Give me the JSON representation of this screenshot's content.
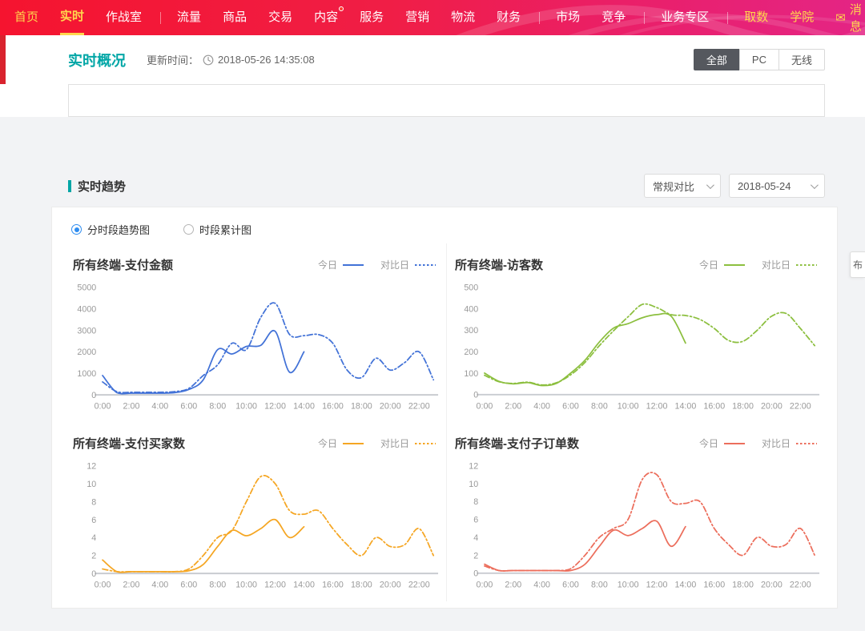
{
  "nav": {
    "items": [
      {
        "name": "home",
        "label": "首页",
        "accent": true
      },
      {
        "name": "realtime",
        "label": "实时",
        "accent": true,
        "active": true
      },
      {
        "name": "war-room",
        "label": "作战室"
      },
      {
        "divider": true
      },
      {
        "name": "traffic",
        "label": "流量"
      },
      {
        "name": "product",
        "label": "商品"
      },
      {
        "name": "trade",
        "label": "交易"
      },
      {
        "name": "content",
        "label": "内容",
        "badge": true
      },
      {
        "name": "service",
        "label": "服务"
      },
      {
        "name": "marketing",
        "label": "营销"
      },
      {
        "name": "logistics",
        "label": "物流"
      },
      {
        "name": "finance",
        "label": "财务"
      },
      {
        "divider": true
      },
      {
        "name": "market",
        "label": "市场"
      },
      {
        "name": "competition",
        "label": "竞争"
      },
      {
        "divider": true
      },
      {
        "name": "business-zone",
        "label": "业务专区"
      },
      {
        "divider": true
      },
      {
        "name": "data-fetch",
        "label": "取数",
        "accent": true
      },
      {
        "name": "academy",
        "label": "学院",
        "accent": true
      }
    ],
    "message": {
      "label": "消息"
    }
  },
  "overview": {
    "title": "实时概况",
    "update_label": "更新时间：",
    "update_time": "2018-05-26 14:35:08",
    "segments": [
      {
        "name": "all",
        "label": "全部",
        "active": true
      },
      {
        "name": "pc",
        "label": "PC",
        "active": false
      },
      {
        "name": "wireless",
        "label": "无线",
        "active": false
      }
    ]
  },
  "trend": {
    "title": "实时趋势",
    "compare_mode": "常规对比",
    "compare_date": "2018-05-24",
    "radios": [
      {
        "name": "trend-by-period",
        "label": "分时段趋势图",
        "selected": true
      },
      {
        "name": "cumulative",
        "label": "时段累计图",
        "selected": false
      }
    ],
    "legend_today": "今日",
    "legend_compare": "对比日"
  },
  "side_tab": {
    "label": "布"
  },
  "colors": {
    "accent_teal": "#00a6a6",
    "nav_yellow": "#ffd64d",
    "chart_blue": "#4272d7",
    "chart_green": "#8cbf3f",
    "chart_orange": "#f5a623",
    "chart_red": "#ec6e5c"
  },
  "chart_data": [
    {
      "type": "line",
      "name": "payment-amount",
      "title": "所有终端-支付金额",
      "color": "#4272d7",
      "ylim": [
        0,
        5000
      ],
      "yticks": [
        0,
        1000,
        2000,
        3000,
        4000,
        5000
      ],
      "xlabels": [
        "0:00",
        "2:00",
        "4:00",
        "6:00",
        "8:00",
        "10:00",
        "12:00",
        "14:00",
        "16:00",
        "18:00",
        "20:00",
        "22:00"
      ],
      "legend_position": "top-right",
      "series": [
        {
          "name": "今日",
          "style": "solid",
          "values": [
            900,
            100,
            80,
            80,
            80,
            100,
            250,
            700,
            2100,
            1900,
            2250,
            2300,
            2950,
            1050,
            2000
          ]
        },
        {
          "name": "对比日",
          "style": "dashed",
          "values": [
            600,
            150,
            120,
            120,
            120,
            150,
            300,
            900,
            1400,
            2400,
            2100,
            3600,
            4250,
            2800,
            2750,
            2800,
            2400,
            1150,
            800,
            1700,
            1150,
            1500,
            2000,
            700
          ]
        }
      ]
    },
    {
      "type": "line",
      "name": "visitors",
      "title": "所有终端-访客数",
      "color": "#8cbf3f",
      "ylim": [
        0,
        500
      ],
      "yticks": [
        0,
        100,
        200,
        300,
        400,
        500
      ],
      "xlabels": [
        "0:00",
        "2:00",
        "4:00",
        "6:00",
        "8:00",
        "10:00",
        "12:00",
        "14:00",
        "16:00",
        "18:00",
        "20:00",
        "22:00"
      ],
      "legend_position": "top-right",
      "series": [
        {
          "name": "今日",
          "style": "solid",
          "values": [
            100,
            62,
            50,
            56,
            42,
            52,
            100,
            160,
            245,
            310,
            330,
            358,
            372,
            365,
            240
          ]
        },
        {
          "name": "对比日",
          "style": "dashed",
          "values": [
            90,
            60,
            52,
            58,
            45,
            55,
            92,
            150,
            228,
            298,
            362,
            420,
            405,
            372,
            368,
            350,
            308,
            252,
            248,
            300,
            365,
            378,
            308,
            228
          ]
        }
      ]
    },
    {
      "type": "line",
      "name": "payment-buyers",
      "title": "所有终端-支付买家数",
      "color": "#f5a623",
      "ylim": [
        0,
        12
      ],
      "yticks": [
        0,
        2,
        4,
        6,
        8,
        10,
        12
      ],
      "xlabels": [
        "0:00",
        "2:00",
        "4:00",
        "6:00",
        "8:00",
        "10:00",
        "12:00",
        "14:00",
        "16:00",
        "18:00",
        "20:00",
        "22:00"
      ],
      "legend_position": "top-right",
      "series": [
        {
          "name": "今日",
          "style": "solid",
          "values": [
            1.5,
            0.2,
            0.2,
            0.2,
            0.2,
            0.2,
            0.3,
            1,
            3,
            4.8,
            4.2,
            5,
            6,
            4,
            5.2
          ]
        },
        {
          "name": "对比日",
          "style": "dashed",
          "values": [
            0.5,
            0.2,
            0.2,
            0.2,
            0.2,
            0.2,
            0.5,
            2,
            4,
            4.8,
            8,
            10.8,
            10,
            7,
            6.6,
            7,
            5,
            3.2,
            2,
            4,
            3,
            3.2,
            5,
            2
          ]
        }
      ]
    },
    {
      "type": "line",
      "name": "payment-suborders",
      "title": "所有终端-支付子订单数",
      "color": "#ec6e5c",
      "ylim": [
        0,
        12
      ],
      "yticks": [
        0,
        2,
        4,
        6,
        8,
        10,
        12
      ],
      "xlabels": [
        "0:00",
        "2:00",
        "4:00",
        "6:00",
        "8:00",
        "10:00",
        "12:00",
        "14:00",
        "16:00",
        "18:00",
        "20:00",
        "22:00"
      ],
      "legend_position": "top-right",
      "series": [
        {
          "name": "今日",
          "style": "solid",
          "values": [
            1,
            0.3,
            0.3,
            0.3,
            0.3,
            0.3,
            0.3,
            1,
            3,
            4.8,
            4.2,
            5,
            5.8,
            3,
            5.2
          ]
        },
        {
          "name": "对比日",
          "style": "dashed",
          "values": [
            0.8,
            0.3,
            0.3,
            0.3,
            0.3,
            0.3,
            0.5,
            2,
            4,
            5,
            6,
            10.5,
            11,
            8,
            7.8,
            8,
            5,
            3.2,
            2,
            4,
            3,
            3.2,
            5,
            2
          ]
        }
      ]
    }
  ]
}
